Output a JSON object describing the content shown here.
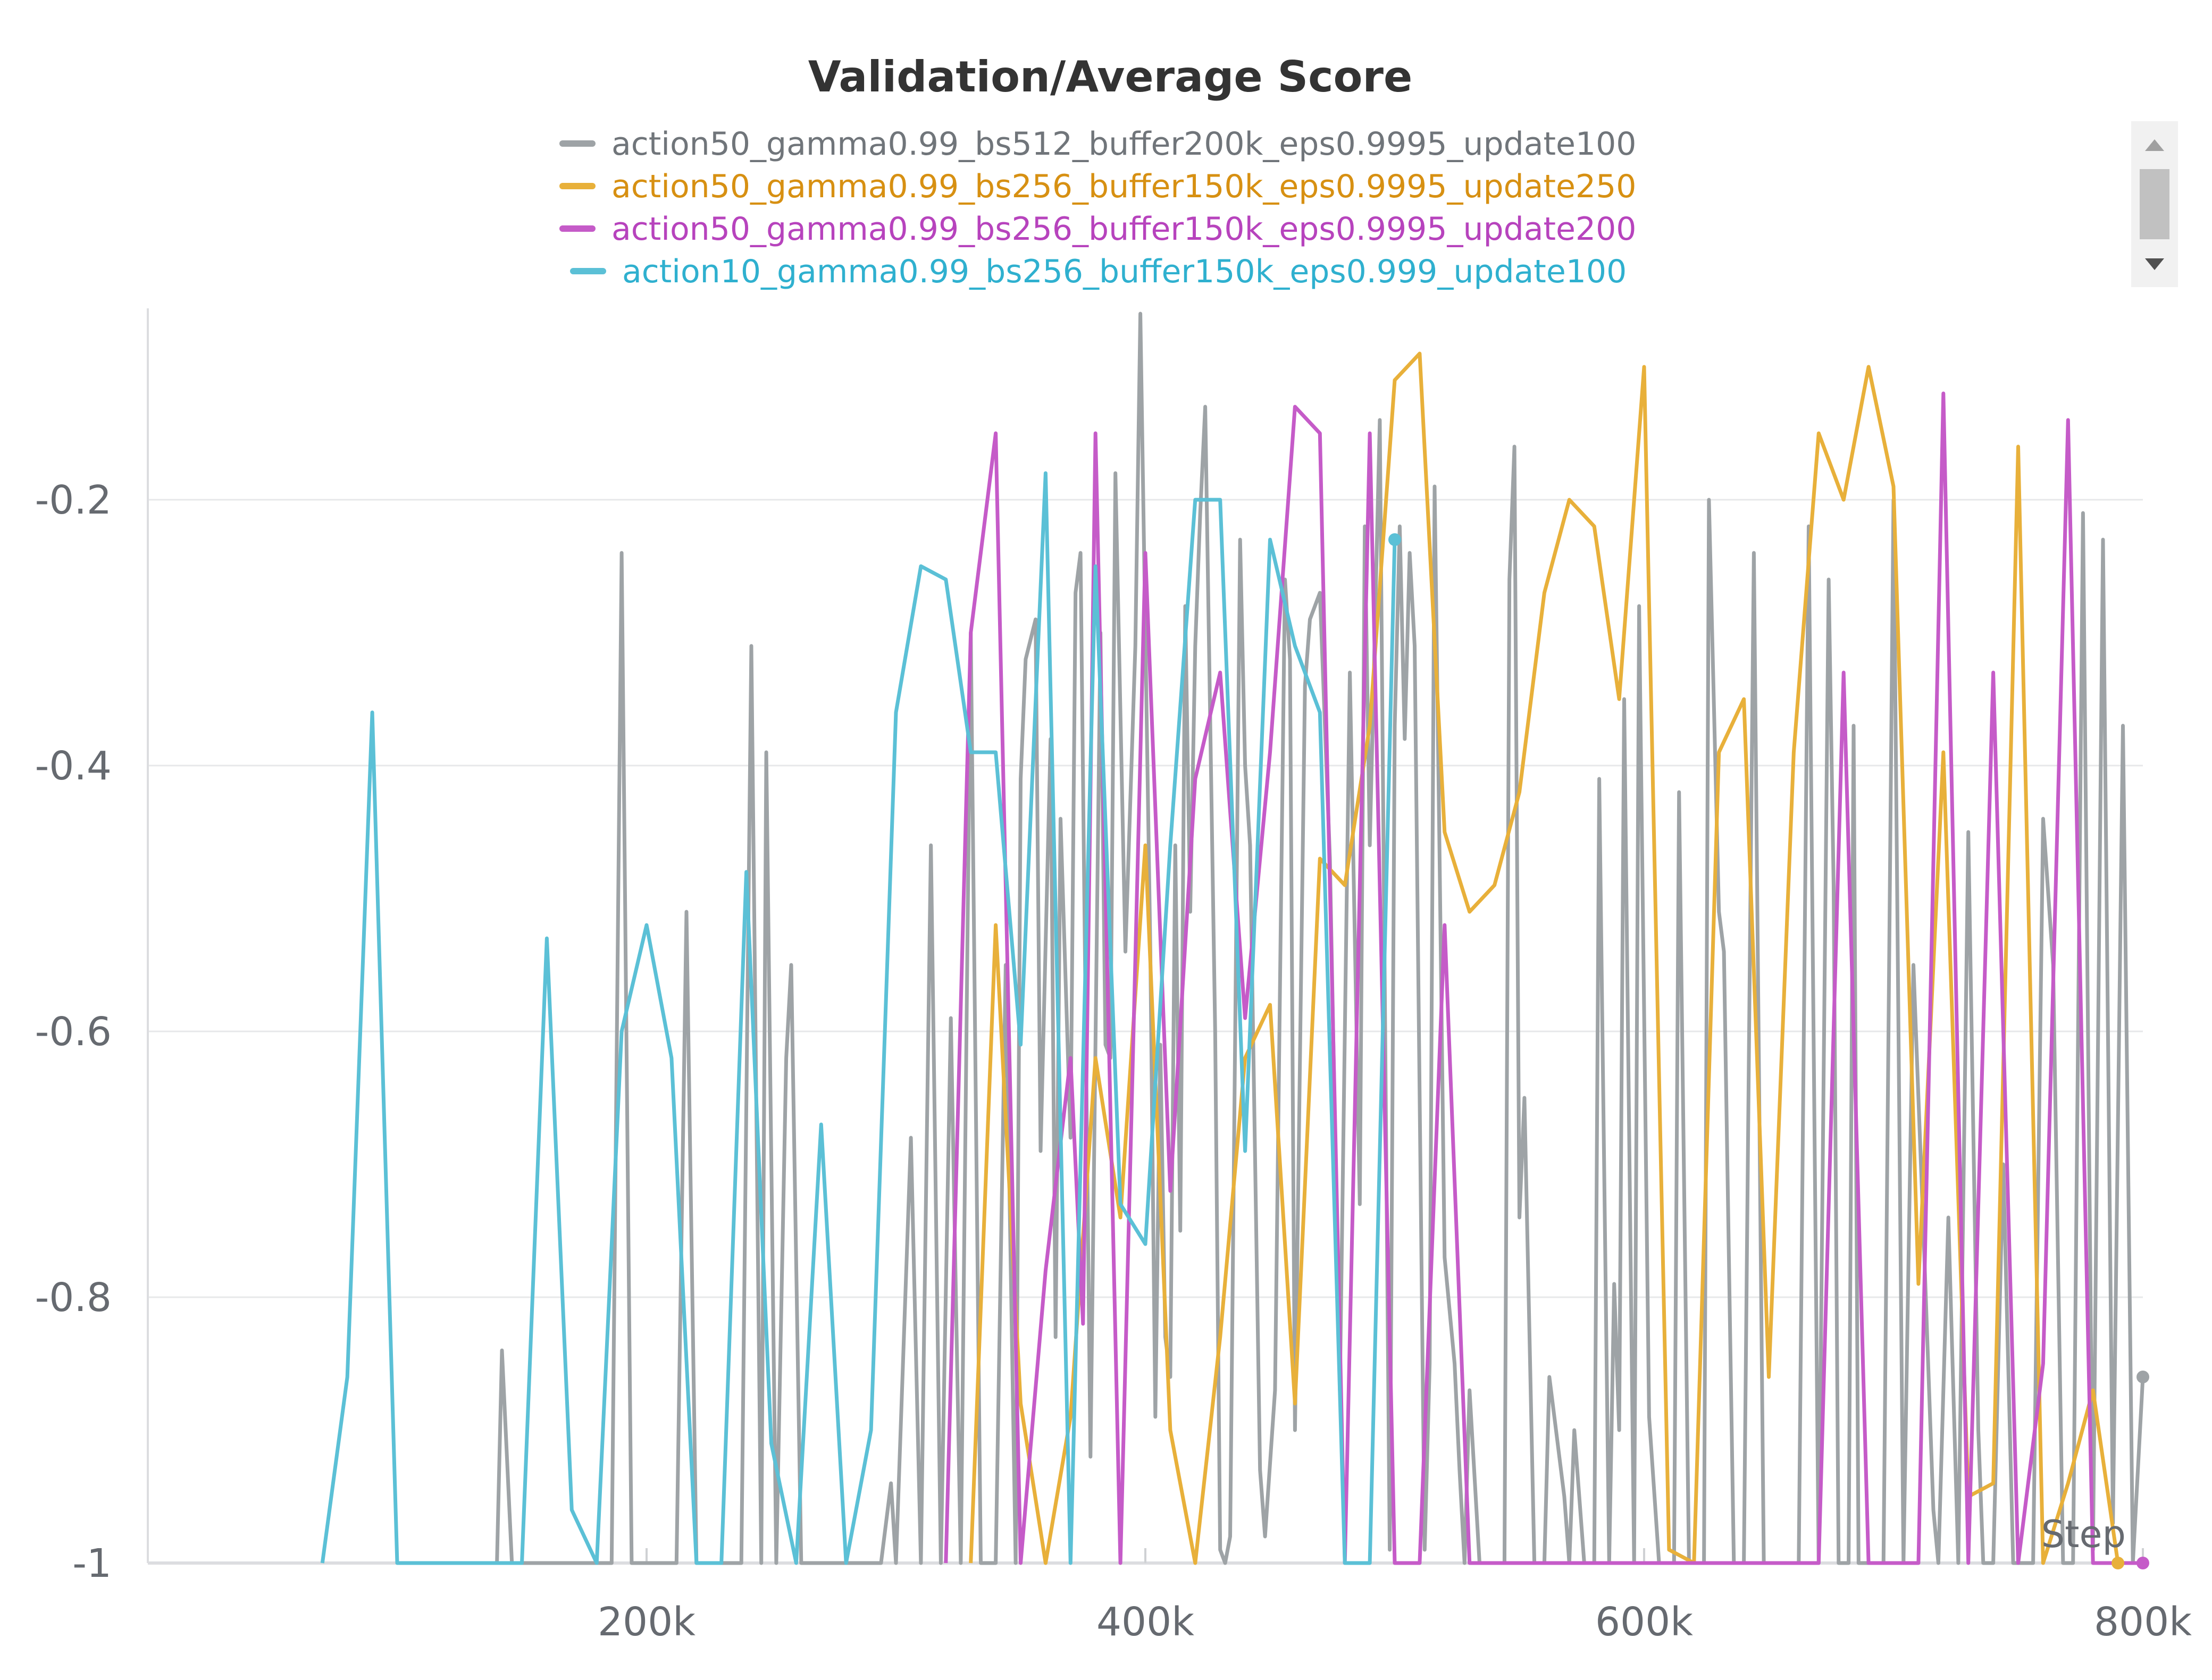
{
  "chart_data": {
    "type": "line",
    "title": "Validation/Average Score",
    "xlabel": "Step",
    "ylabel": "",
    "xlim": [
      0,
      800000
    ],
    "ylim": [
      -1,
      -0.06
    ],
    "x_ticks": [
      200000,
      400000,
      600000,
      800000
    ],
    "x_tick_labels": [
      "200k",
      "400k",
      "600k",
      "800k"
    ],
    "y_ticks": [
      -1,
      -0.8,
      -0.6,
      -0.4,
      -0.2
    ],
    "y_tick_labels": [
      "-1",
      "-0.8",
      "-0.6",
      "-0.4",
      "-0.2"
    ],
    "grid": true,
    "legend_position": "top-center",
    "series": [
      {
        "name": "action50_gamma0.99_bs512_buffer200k_eps0.9995_update100",
        "color": "#9ea3a6",
        "points": [
          [
            140000,
            -1
          ],
          [
            142000,
            -0.84
          ],
          [
            146000,
            -1
          ],
          [
            186000,
            -1
          ],
          [
            190000,
            -0.24
          ],
          [
            194000,
            -1
          ],
          [
            212000,
            -1
          ],
          [
            216000,
            -0.51
          ],
          [
            220000,
            -1
          ],
          [
            238000,
            -1
          ],
          [
            242000,
            -0.31
          ],
          [
            246000,
            -1
          ],
          [
            248000,
            -0.39
          ],
          [
            252000,
            -1
          ],
          [
            256000,
            -0.62
          ],
          [
            258000,
            -0.55
          ],
          [
            262000,
            -1
          ],
          [
            294000,
            -1
          ],
          [
            298000,
            -0.94
          ],
          [
            300000,
            -1
          ],
          [
            306000,
            -0.68
          ],
          [
            310000,
            -1
          ],
          [
            314000,
            -0.46
          ],
          [
            318000,
            -1
          ],
          [
            322000,
            -0.59
          ],
          [
            326000,
            -1
          ],
          [
            330000,
            -0.3
          ],
          [
            334000,
            -1
          ],
          [
            340000,
            -1
          ],
          [
            344000,
            -0.55
          ],
          [
            348000,
            -1
          ],
          [
            350000,
            -0.41
          ],
          [
            352000,
            -0.32
          ],
          [
            356000,
            -0.29
          ],
          [
            358000,
            -0.69
          ],
          [
            362000,
            -0.38
          ],
          [
            364000,
            -0.83
          ],
          [
            366000,
            -0.44
          ],
          [
            370000,
            -0.68
          ],
          [
            372000,
            -0.27
          ],
          [
            374000,
            -0.24
          ],
          [
            378000,
            -0.92
          ],
          [
            382000,
            -0.3
          ],
          [
            384000,
            -0.61
          ],
          [
            386000,
            -0.62
          ],
          [
            388000,
            -0.18
          ],
          [
            392000,
            -0.54
          ],
          [
            396000,
            -0.31
          ],
          [
            398000,
            -0.06
          ],
          [
            402000,
            -0.54
          ],
          [
            404000,
            -0.89
          ],
          [
            406000,
            -0.61
          ],
          [
            408000,
            -0.83
          ],
          [
            410000,
            -0.86
          ],
          [
            412000,
            -0.46
          ],
          [
            414000,
            -0.75
          ],
          [
            416000,
            -0.28
          ],
          [
            418000,
            -0.51
          ],
          [
            420000,
            -0.31
          ],
          [
            422000,
            -0.21
          ],
          [
            424000,
            -0.13
          ],
          [
            428000,
            -0.6
          ],
          [
            430000,
            -0.99
          ],
          [
            432000,
            -1
          ],
          [
            434000,
            -0.98
          ],
          [
            438000,
            -0.23
          ],
          [
            440000,
            -0.4
          ],
          [
            442000,
            -0.46
          ],
          [
            446000,
            -0.93
          ],
          [
            448000,
            -0.98
          ],
          [
            452000,
            -0.87
          ],
          [
            456000,
            -0.26
          ],
          [
            458000,
            -0.32
          ],
          [
            460000,
            -0.9
          ],
          [
            464000,
            -0.34
          ],
          [
            466000,
            -0.29
          ],
          [
            470000,
            -0.27
          ],
          [
            474000,
            -0.47
          ],
          [
            478000,
            -0.87
          ],
          [
            482000,
            -0.33
          ],
          [
            486000,
            -0.73
          ],
          [
            488000,
            -0.22
          ],
          [
            490000,
            -0.46
          ],
          [
            494000,
            -0.14
          ],
          [
            498000,
            -0.99
          ],
          [
            500000,
            -0.37
          ],
          [
            502000,
            -0.22
          ],
          [
            504000,
            -0.38
          ],
          [
            506000,
            -0.24
          ],
          [
            508000,
            -0.31
          ],
          [
            512000,
            -0.99
          ],
          [
            514000,
            -0.85
          ],
          [
            516000,
            -0.19
          ],
          [
            518000,
            -0.47
          ],
          [
            520000,
            -0.77
          ],
          [
            524000,
            -0.85
          ],
          [
            526000,
            -0.93
          ],
          [
            528000,
            -1
          ],
          [
            530000,
            -0.87
          ],
          [
            534000,
            -1
          ],
          [
            544000,
            -1
          ],
          [
            546000,
            -0.26
          ],
          [
            548000,
            -0.16
          ],
          [
            550000,
            -0.74
          ],
          [
            552000,
            -0.65
          ],
          [
            556000,
            -1
          ],
          [
            560000,
            -1
          ],
          [
            562000,
            -0.86
          ],
          [
            564000,
            -0.89
          ],
          [
            568000,
            -0.95
          ],
          [
            570000,
            -1
          ],
          [
            572000,
            -0.9
          ],
          [
            576000,
            -1
          ],
          [
            580000,
            -1
          ],
          [
            582000,
            -0.41
          ],
          [
            586000,
            -1
          ],
          [
            588000,
            -0.79
          ],
          [
            590000,
            -0.9
          ],
          [
            592000,
            -0.35
          ],
          [
            596000,
            -1
          ],
          [
            598000,
            -0.28
          ],
          [
            602000,
            -0.89
          ],
          [
            606000,
            -1
          ],
          [
            612000,
            -1
          ],
          [
            614000,
            -0.42
          ],
          [
            618000,
            -1
          ],
          [
            624000,
            -1
          ],
          [
            626000,
            -0.2
          ],
          [
            630000,
            -0.51
          ],
          [
            632000,
            -0.54
          ],
          [
            636000,
            -1
          ],
          [
            640000,
            -1
          ],
          [
            644000,
            -0.24
          ],
          [
            648000,
            -1
          ],
          [
            662000,
            -1
          ],
          [
            666000,
            -0.22
          ],
          [
            670000,
            -1
          ],
          [
            674000,
            -0.26
          ],
          [
            676000,
            -0.49
          ],
          [
            678000,
            -1
          ],
          [
            682000,
            -1
          ],
          [
            684000,
            -0.37
          ],
          [
            686000,
            -1
          ],
          [
            696000,
            -1
          ],
          [
            700000,
            -0.2
          ],
          [
            704000,
            -1
          ],
          [
            708000,
            -0.55
          ],
          [
            712000,
            -0.75
          ],
          [
            716000,
            -0.96
          ],
          [
            718000,
            -1
          ],
          [
            722000,
            -0.74
          ],
          [
            726000,
            -1
          ],
          [
            730000,
            -0.45
          ],
          [
            734000,
            -0.9
          ],
          [
            736000,
            -1
          ],
          [
            740000,
            -1
          ],
          [
            744000,
            -0.7
          ],
          [
            748000,
            -1
          ],
          [
            756000,
            -1
          ],
          [
            760000,
            -0.44
          ],
          [
            764000,
            -0.55
          ],
          [
            768000,
            -1
          ],
          [
            772000,
            -1
          ],
          [
            776000,
            -0.21
          ],
          [
            780000,
            -0.99
          ],
          [
            784000,
            -0.23
          ],
          [
            788000,
            -0.97
          ],
          [
            792000,
            -0.37
          ],
          [
            796000,
            -1
          ],
          [
            800000,
            -0.86
          ]
        ]
      },
      {
        "name": "action50_gamma0.99_bs256_buffer150k_eps0.9995_update250",
        "color": "#e8b03a",
        "points": [
          [
            330000,
            -1
          ],
          [
            340000,
            -0.52
          ],
          [
            350000,
            -0.88
          ],
          [
            360000,
            -1
          ],
          [
            370000,
            -0.89
          ],
          [
            380000,
            -0.62
          ],
          [
            390000,
            -0.74
          ],
          [
            400000,
            -0.46
          ],
          [
            410000,
            -0.9
          ],
          [
            420000,
            -1
          ],
          [
            430000,
            -0.83
          ],
          [
            440000,
            -0.62
          ],
          [
            450000,
            -0.58
          ],
          [
            460000,
            -0.88
          ],
          [
            470000,
            -0.47
          ],
          [
            480000,
            -0.49
          ],
          [
            490000,
            -0.37
          ],
          [
            500000,
            -0.11
          ],
          [
            510000,
            -0.09
          ],
          [
            520000,
            -0.45
          ],
          [
            530000,
            -0.51
          ],
          [
            540000,
            -0.49
          ],
          [
            550000,
            -0.42
          ],
          [
            560000,
            -0.27
          ],
          [
            570000,
            -0.2
          ],
          [
            580000,
            -0.22
          ],
          [
            590000,
            -0.35
          ],
          [
            600000,
            -0.1
          ],
          [
            610000,
            -0.99
          ],
          [
            620000,
            -1
          ],
          [
            630000,
            -0.39
          ],
          [
            640000,
            -0.35
          ],
          [
            650000,
            -0.86
          ],
          [
            660000,
            -0.39
          ],
          [
            670000,
            -0.15
          ],
          [
            680000,
            -0.2
          ],
          [
            690000,
            -0.1
          ],
          [
            700000,
            -0.19
          ],
          [
            710000,
            -0.79
          ],
          [
            720000,
            -0.39
          ],
          [
            730000,
            -0.95
          ],
          [
            740000,
            -0.94
          ],
          [
            750000,
            -0.16
          ],
          [
            760000,
            -1
          ],
          [
            770000,
            -0.94
          ],
          [
            780000,
            -0.87
          ],
          [
            790000,
            -1
          ]
        ]
      },
      {
        "name": "action50_gamma0.99_bs256_buffer150k_eps0.9995_update200",
        "color": "#c55bc8",
        "points": [
          [
            320000,
            -1
          ],
          [
            330000,
            -0.3
          ],
          [
            340000,
            -0.15
          ],
          [
            350000,
            -1
          ],
          [
            360000,
            -0.78
          ],
          [
            370000,
            -0.62
          ],
          [
            375000,
            -0.82
          ],
          [
            380000,
            -0.15
          ],
          [
            390000,
            -1
          ],
          [
            400000,
            -0.24
          ],
          [
            410000,
            -0.72
          ],
          [
            420000,
            -0.41
          ],
          [
            430000,
            -0.33
          ],
          [
            440000,
            -0.59
          ],
          [
            450000,
            -0.39
          ],
          [
            460000,
            -0.13
          ],
          [
            470000,
            -0.15
          ],
          [
            480000,
            -1
          ],
          [
            490000,
            -0.15
          ],
          [
            500000,
            -1
          ],
          [
            510000,
            -1
          ],
          [
            520000,
            -0.52
          ],
          [
            530000,
            -1
          ],
          [
            540000,
            -1
          ],
          [
            650000,
            -1
          ],
          [
            670000,
            -1
          ],
          [
            680000,
            -0.33
          ],
          [
            690000,
            -1
          ],
          [
            710000,
            -1
          ],
          [
            720000,
            -0.12
          ],
          [
            730000,
            -1
          ],
          [
            740000,
            -0.33
          ],
          [
            750000,
            -1
          ],
          [
            760000,
            -0.85
          ],
          [
            770000,
            -0.14
          ],
          [
            780000,
            -1
          ],
          [
            800000,
            -1
          ]
        ]
      },
      {
        "name": "action10_gamma0.99_bs256_buffer150k_eps0.999_update100",
        "color": "#5bc0d6",
        "points": [
          [
            70000,
            -1
          ],
          [
            80000,
            -0.86
          ],
          [
            90000,
            -0.36
          ],
          [
            100000,
            -1
          ],
          [
            150000,
            -1
          ],
          [
            160000,
            -0.53
          ],
          [
            170000,
            -0.96
          ],
          [
            180000,
            -1
          ],
          [
            190000,
            -0.6
          ],
          [
            200000,
            -0.52
          ],
          [
            210000,
            -0.62
          ],
          [
            220000,
            -1
          ],
          [
            230000,
            -1
          ],
          [
            240000,
            -0.48
          ],
          [
            250000,
            -0.91
          ],
          [
            260000,
            -1
          ],
          [
            270000,
            -0.67
          ],
          [
            280000,
            -1
          ],
          [
            290000,
            -0.9
          ],
          [
            300000,
            -0.36
          ],
          [
            310000,
            -0.25
          ],
          [
            320000,
            -0.26
          ],
          [
            330000,
            -0.39
          ],
          [
            340000,
            -0.39
          ],
          [
            350000,
            -0.61
          ],
          [
            360000,
            -0.18
          ],
          [
            370000,
            -1
          ],
          [
            380000,
            -0.25
          ],
          [
            390000,
            -0.73
          ],
          [
            400000,
            -0.76
          ],
          [
            410000,
            -0.46
          ],
          [
            420000,
            -0.2
          ],
          [
            430000,
            -0.2
          ],
          [
            440000,
            -0.69
          ],
          [
            450000,
            -0.23
          ],
          [
            460000,
            -0.31
          ],
          [
            470000,
            -0.36
          ],
          [
            480000,
            -1
          ],
          [
            490000,
            -1
          ],
          [
            500000,
            -0.23
          ]
        ]
      }
    ]
  },
  "legend_scroll": {
    "up_icon": "scroll-up-arrow-icon",
    "down_icon": "scroll-down-arrow-icon"
  }
}
